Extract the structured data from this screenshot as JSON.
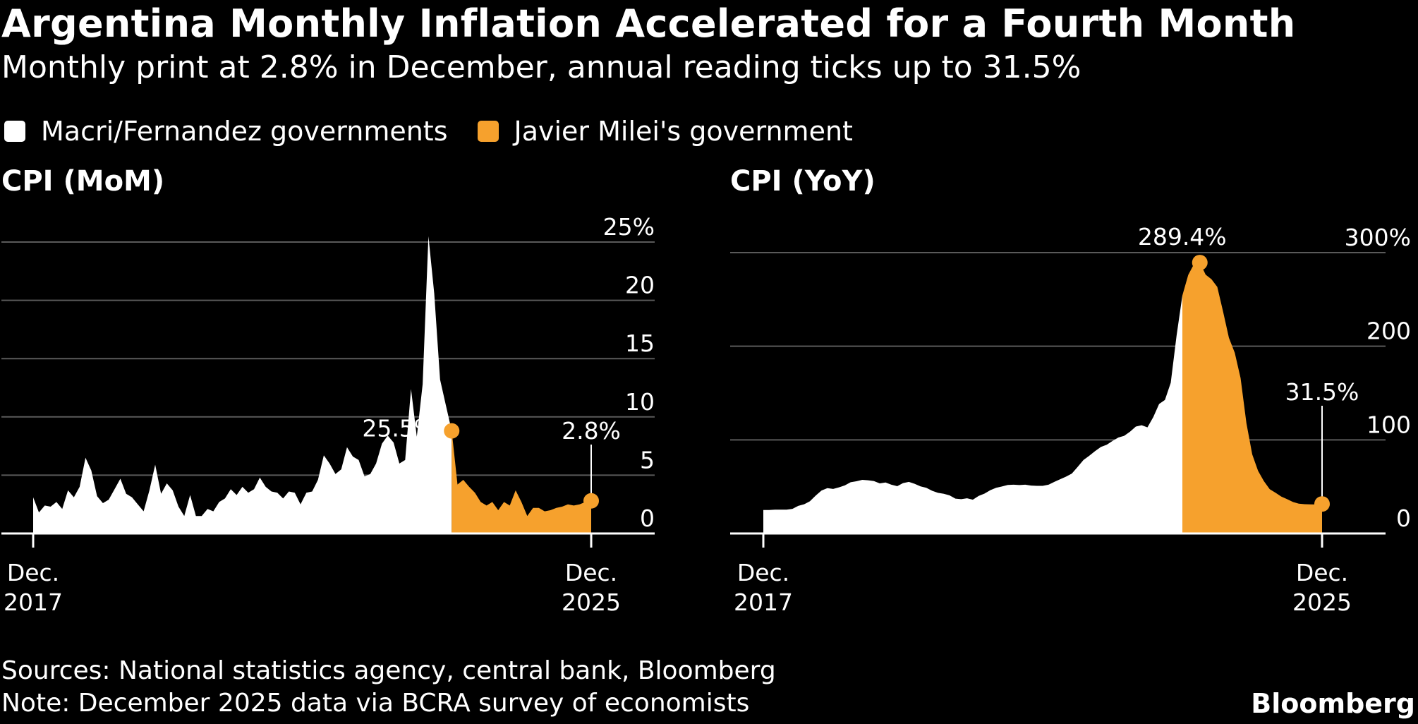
{
  "title": "Argentina Monthly Inflation Accelerated for a Fourth Month",
  "subtitle": "Monthly print at 2.8% in December, annual reading ticks up to 31.5%",
  "legend": [
    {
      "label": "Macri/Fernandez governments",
      "color": "#ffffff"
    },
    {
      "label": "Javier Milei's government",
      "color": "#f6a12d"
    }
  ],
  "colors": {
    "background": "#000000",
    "series_prior": "#ffffff",
    "series_milei": "#f6a12d",
    "grid": "#5a5a5a"
  },
  "source": "Sources: National statistics agency, central bank, Bloomberg",
  "note": "Note: December 2025 data via BCRA survey of economists",
  "brand": "Bloomberg",
  "chart_data": [
    {
      "type": "area",
      "title": "CPI (MoM)",
      "x_start": "Dec. 2017",
      "x_end": "Dec. 2025",
      "x_tick_labels": [
        [
          "Dec.",
          "2017"
        ],
        [
          "Dec.",
          "2025"
        ]
      ],
      "y_ticks": [
        0,
        5,
        10,
        15,
        20,
        25
      ],
      "y_tick_labels": [
        "0",
        "5",
        "10",
        "15",
        "20",
        "25%"
      ],
      "ylim": [
        0,
        25
      ],
      "grid": true,
      "split_index": 72,
      "annotations": [
        {
          "index": 72,
          "label": "25.5%",
          "style": "peak"
        },
        {
          "index": 96,
          "label": "2.8%",
          "style": "last"
        }
      ],
      "values": [
        3.1,
        1.8,
        2.4,
        2.3,
        2.7,
        2.1,
        3.7,
        3.1,
        4.0,
        6.5,
        5.4,
        3.2,
        2.6,
        2.9,
        3.8,
        4.7,
        3.4,
        3.1,
        2.5,
        1.9,
        3.7,
        5.9,
        3.4,
        4.3,
        3.7,
        2.3,
        1.5,
        3.3,
        1.5,
        1.5,
        2.1,
        1.9,
        2.7,
        3.0,
        3.8,
        3.3,
        4.0,
        3.5,
        3.8,
        4.8,
        4.0,
        3.6,
        3.5,
        3.0,
        3.6,
        3.5,
        2.5,
        3.5,
        3.6,
        4.6,
        6.7,
        6.0,
        5.1,
        5.5,
        7.4,
        6.6,
        6.3,
        4.9,
        5.1,
        6.0,
        7.7,
        8.4,
        7.8,
        6.0,
        6.3,
        12.4,
        8.3,
        12.8,
        25.5,
        20.6,
        13.2,
        11.0,
        8.8,
        4.2,
        4.6,
        4.0,
        3.5,
        2.7,
        2.4,
        2.7,
        2.0,
        2.7,
        2.4,
        3.7,
        2.7,
        1.5,
        2.2,
        2.2,
        1.9,
        2.0,
        2.2,
        2.3,
        2.5,
        2.4,
        2.5,
        2.7,
        2.8
      ]
    },
    {
      "type": "area",
      "title": "CPI (YoY)",
      "x_start": "Dec. 2017",
      "x_end": "Dec. 2025",
      "x_tick_labels": [
        [
          "Dec.",
          "2017"
        ],
        [
          "Dec.",
          "2025"
        ]
      ],
      "y_ticks": [
        0,
        100,
        200,
        300
      ],
      "y_tick_labels": [
        "0",
        "100",
        "200",
        "300%"
      ],
      "ylim": [
        0,
        300
      ],
      "grid": true,
      "split_index": 72,
      "annotations": [
        {
          "index": 75,
          "label": "289.4%",
          "style": "peak"
        },
        {
          "index": 96,
          "label": "31.5%",
          "style": "last"
        }
      ],
      "values": [
        25.0,
        25.0,
        25.4,
        25.4,
        25.5,
        26.3,
        29.5,
        31.2,
        34.4,
        40.5,
        45.9,
        48.5,
        47.6,
        49.3,
        51.3,
        54.7,
        55.8,
        57.3,
        56.8,
        55.9,
        53.5,
        54.5,
        52.1,
        50.5,
        53.8,
        55.1,
        53.1,
        50.3,
        48.8,
        45.6,
        43.4,
        42.4,
        40.7,
        37.2,
        36.6,
        37.6,
        36.1,
        40.1,
        42.6,
        46.3,
        48.8,
        50.2,
        51.8,
        52.1,
        51.7,
        52.1,
        51.2,
        50.9,
        50.9,
        52.1,
        55.1,
        58.0,
        60.7,
        64.0,
        71.0,
        78.5,
        83.0,
        88.0,
        92.4,
        94.8,
        98.8,
        102.5,
        104.3,
        108.8,
        114.2,
        115.6,
        113.4,
        124.4,
        138.3,
        142.7,
        160.9,
        211.4,
        254.2,
        276.2,
        287.9,
        289.4,
        276.4,
        271.5,
        263.4,
        236.7,
        209.0,
        193.0,
        166.0,
        117.8,
        84.5,
        66.9,
        55.9,
        47.3,
        43.5,
        39.4,
        36.6,
        33.6,
        31.8,
        31.3,
        31.1,
        31.0,
        31.5
      ]
    }
  ]
}
